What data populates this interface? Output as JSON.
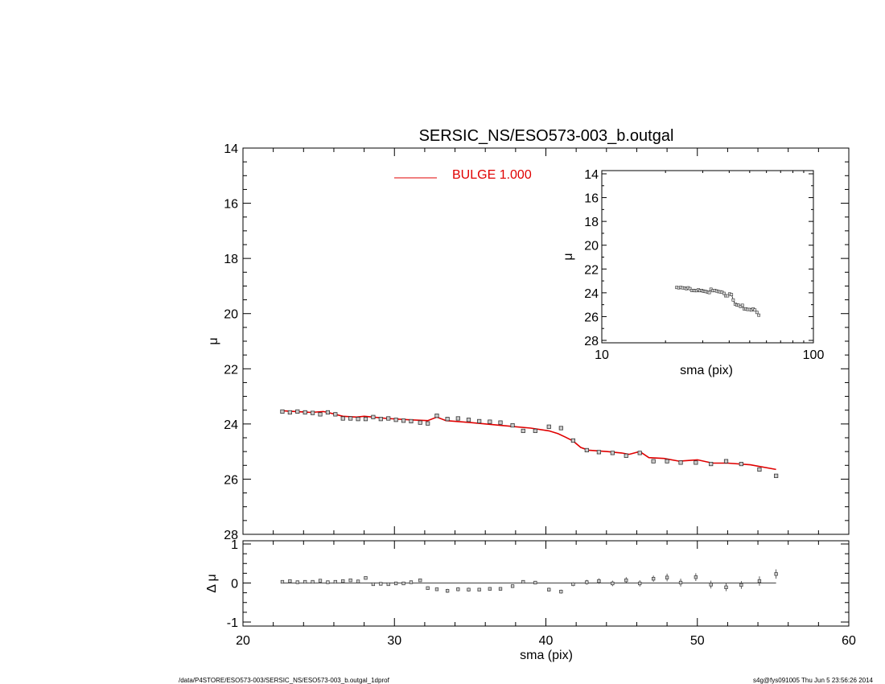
{
  "title": "SERSIC_NS/ESO573-003_b.outgal",
  "footer": {
    "left": "/data/P4STORE/ESO573-003/SERSIC_NS/ESO573-003_b.outgal_1dprof",
    "right": "s4g@fys091005  Thu Jun  5 23:56:26 2014"
  },
  "legend": {
    "label": "BULGE  1.000",
    "color": "#e00000"
  },
  "chart_data": [
    {
      "type": "scatter",
      "role": "main",
      "xlabel": "",
      "ylabel": "μ",
      "xlim": [
        20,
        60
      ],
      "ylim": [
        28,
        14
      ],
      "yticks": [
        "14",
        "16",
        "18",
        "20",
        "22",
        "24",
        "26",
        "28"
      ],
      "x": [
        22.6,
        23.1,
        23.6,
        24.1,
        24.6,
        25.1,
        25.6,
        26.1,
        26.6,
        27.1,
        27.6,
        28.1,
        28.6,
        29.1,
        29.6,
        30.1,
        30.6,
        31.1,
        31.7,
        32.2,
        32.8,
        33.5,
        34.2,
        34.9,
        35.6,
        36.3,
        37.0,
        37.8,
        38.5,
        39.3,
        40.2,
        41.0,
        41.8,
        42.7,
        43.5,
        44.4,
        45.3,
        46.2,
        47.1,
        48.0,
        48.9,
        49.9,
        50.9,
        51.9,
        52.9,
        54.1,
        55.2
      ],
      "y": [
        23.55,
        23.58,
        23.55,
        23.58,
        23.6,
        23.65,
        23.58,
        23.65,
        23.8,
        23.8,
        23.82,
        23.82,
        23.75,
        23.82,
        23.8,
        23.85,
        23.88,
        23.9,
        23.95,
        23.98,
        23.7,
        23.82,
        23.8,
        23.85,
        23.9,
        23.92,
        23.95,
        24.05,
        24.25,
        24.25,
        24.1,
        24.15,
        24.6,
        24.95,
        25.02,
        25.05,
        25.15,
        25.05,
        25.35,
        25.35,
        25.4,
        25.4,
        25.45,
        25.35,
        25.45,
        25.65,
        25.88
      ],
      "model": {
        "name": "BULGE  1.000",
        "x": [
          22.6,
          23.5,
          24.5,
          25.3,
          25.6,
          26.1,
          26.6,
          27.5,
          28.0,
          28.6,
          29.5,
          31.0,
          32.2,
          32.8,
          33.4,
          35.0,
          37.0,
          39.0,
          40.2,
          40.8,
          41.3,
          41.8,
          42.3,
          42.8,
          44.0,
          45.0,
          45.5,
          46.2,
          46.8,
          47.8,
          48.8,
          50.0,
          51.0,
          52.0,
          53.5,
          55.2
        ],
        "y": [
          23.52,
          23.55,
          23.58,
          23.55,
          23.58,
          23.65,
          23.72,
          23.75,
          23.72,
          23.75,
          23.8,
          23.85,
          23.88,
          23.75,
          23.88,
          23.95,
          24.05,
          24.15,
          24.25,
          24.35,
          24.48,
          24.62,
          24.85,
          24.95,
          25.0,
          25.05,
          25.1,
          25.0,
          25.22,
          25.25,
          25.35,
          25.3,
          25.42,
          25.42,
          25.48,
          25.65
        ]
      }
    },
    {
      "type": "scatter",
      "role": "residuals",
      "xlabel": "sma (pix)",
      "ylabel": "Δ μ",
      "xlim": [
        20,
        60
      ],
      "ylim": [
        -1,
        1
      ],
      "xticks": [
        "20",
        "30",
        "40",
        "50",
        "60"
      ],
      "yticks": [
        "1",
        "0",
        "-1"
      ],
      "x": [
        22.6,
        23.1,
        23.6,
        24.1,
        24.6,
        25.1,
        25.6,
        26.1,
        26.6,
        27.1,
        27.6,
        28.1,
        28.6,
        29.1,
        29.6,
        30.1,
        30.6,
        31.1,
        31.7,
        32.2,
        32.8,
        33.5,
        34.2,
        34.9,
        35.6,
        36.3,
        37.0,
        37.8,
        38.5,
        39.3,
        40.2,
        41.0,
        41.8,
        42.7,
        43.5,
        44.4,
        45.3,
        46.2,
        47.1,
        48.0,
        48.9,
        49.9,
        50.9,
        51.9,
        52.9,
        54.1,
        55.2
      ],
      "y": [
        0.03,
        0.05,
        0.02,
        0.03,
        0.03,
        0.06,
        0.02,
        0.03,
        0.05,
        0.07,
        0.04,
        0.13,
        -0.03,
        -0.02,
        -0.03,
        -0.01,
        -0.01,
        0.02,
        0.07,
        -0.13,
        -0.16,
        -0.2,
        -0.16,
        -0.17,
        -0.17,
        -0.15,
        -0.15,
        -0.08,
        0.03,
        0.01,
        -0.17,
        -0.22,
        -0.03,
        0.02,
        0.05,
        -0.01,
        0.07,
        -0.01,
        0.11,
        0.14,
        0.01,
        0.15,
        -0.04,
        -0.11,
        -0.05,
        0.05,
        0.23
      ],
      "err": [
        0.01,
        0.01,
        0.01,
        0.01,
        0.01,
        0.02,
        0.01,
        0.02,
        0.03,
        0.03,
        0.03,
        0.03,
        0.02,
        0.02,
        0.02,
        0.02,
        0.02,
        0.02,
        0.03,
        0.04,
        0.04,
        0.05,
        0.05,
        0.05,
        0.04,
        0.04,
        0.04,
        0.04,
        0.04,
        0.04,
        0.05,
        0.05,
        0.05,
        0.06,
        0.07,
        0.07,
        0.08,
        0.08,
        0.08,
        0.1,
        0.1,
        0.1,
        0.1,
        0.1,
        0.1,
        0.12,
        0.12
      ]
    },
    {
      "type": "scatter",
      "role": "inset",
      "xlabel": "sma (pix)",
      "ylabel": "μ",
      "xscale": "log",
      "xlim": [
        10,
        100
      ],
      "ylim": [
        28,
        14
      ],
      "xticks": [
        "10",
        "100"
      ],
      "yticks": [
        "14",
        "16",
        "18",
        "20",
        "22",
        "24",
        "26",
        "28"
      ]
    }
  ]
}
